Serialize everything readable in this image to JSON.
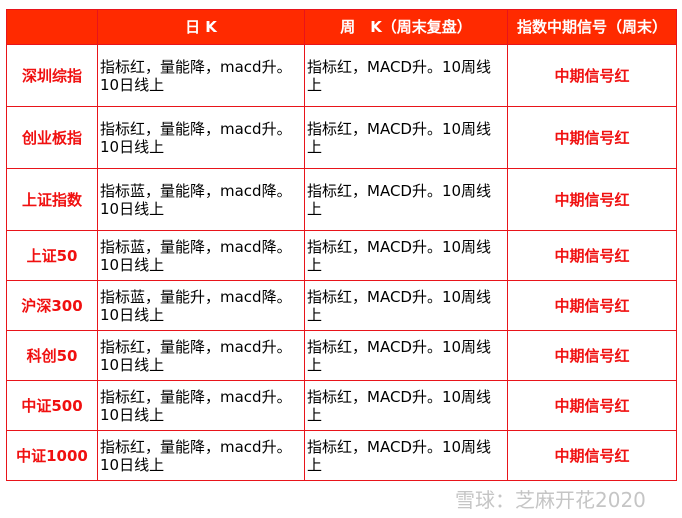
{
  "headers": {
    "index": "",
    "daily": "日 K",
    "weekly": "周　K（周末复盘）",
    "signal": "指数中期信号（周末）"
  },
  "rows": [
    {
      "name": "深圳综指",
      "daily": "指标红，量能降，macd升。10日线上",
      "weekly": "指标红，MACD升。10周线上",
      "signal": "中期信号红"
    },
    {
      "name": "创业板指",
      "daily": "指标红，量能降，macd升。10日线上",
      "weekly": "指标红，MACD升。10周线上",
      "signal": "中期信号红"
    },
    {
      "name": "上证指数",
      "daily": "指标蓝，量能降，macd降。10日线上",
      "weekly": "指标红，MACD升。10周线上",
      "signal": "中期信号红"
    },
    {
      "name": "上证50",
      "daily": "指标蓝，量能降，macd降。10日线上",
      "weekly": "指标红，MACD升。10周线上",
      "signal": "中期信号红"
    },
    {
      "name": "沪深300",
      "daily": "指标蓝，量能升，macd降。10日线上",
      "weekly": "指标红，MACD升。10周线上",
      "signal": "中期信号红"
    },
    {
      "name": "科创50",
      "daily": "指标红，量能降，macd升。10日线上",
      "weekly": "指标红，MACD升。10周线上",
      "signal": "中期信号红"
    },
    {
      "name": "中证500",
      "daily": "指标红，量能降，macd升。10日线上",
      "weekly": "指标红，MACD升。10周线上",
      "signal": "中期信号红"
    },
    {
      "name": "中证1000",
      "daily": "指标红，量能降，macd升。10日线上",
      "weekly": "指标红，MACD升。10周线上",
      "signal": "中期信号红"
    }
  ],
  "watermark": "雪球：芝麻开花2020",
  "colors": {
    "header_bg": "#ff2a00",
    "accent": "#f01010",
    "border": "#e8141a"
  }
}
